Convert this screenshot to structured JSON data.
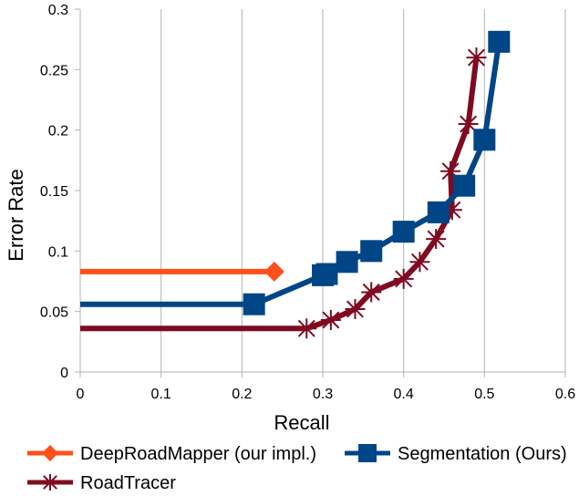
{
  "chart_data": {
    "type": "line",
    "title": "",
    "xlabel": "Recall",
    "ylabel": "Error Rate",
    "xlim": [
      0,
      0.6
    ],
    "ylim": [
      0,
      0.3
    ],
    "x_ticks": [
      0,
      0.1,
      0.2,
      0.3,
      0.4,
      0.5,
      0.6
    ],
    "x_tick_labels": [
      "0",
      "0.1",
      "0.2",
      "0.3",
      "0.4",
      "0.5",
      "0.6"
    ],
    "y_ticks": [
      0,
      0.05,
      0.1,
      0.15,
      0.2,
      0.25,
      0.3
    ],
    "y_tick_labels": [
      "0",
      "0.05",
      "0.1",
      "0.15",
      "0.2",
      "0.25",
      "0.3"
    ],
    "grid": "vertical",
    "legend_position": "bottom",
    "series": [
      {
        "name": "DeepRoadMapper (our impl.)",
        "color": "#ff4f1a",
        "marker": "diamond",
        "points": [
          [
            0,
            0.083
          ],
          [
            0.24,
            0.083
          ]
        ]
      },
      {
        "name": "RoadTracer",
        "color": "#7f0a21",
        "marker": "asterisk",
        "points": [
          [
            0,
            0.036
          ],
          [
            0.28,
            0.036
          ],
          [
            0.31,
            0.043
          ],
          [
            0.34,
            0.052
          ],
          [
            0.36,
            0.066
          ],
          [
            0.4,
            0.077
          ],
          [
            0.42,
            0.091
          ],
          [
            0.44,
            0.11
          ],
          [
            0.46,
            0.134
          ],
          [
            0.458,
            0.166
          ],
          [
            0.48,
            0.205
          ],
          [
            0.49,
            0.26
          ]
        ]
      },
      {
        "name": "Segmentation (Ours)",
        "color": "#004586",
        "marker": "square",
        "points": [
          [
            0,
            0.056
          ],
          [
            0.215,
            0.056
          ],
          [
            0.3,
            0.08
          ],
          [
            0.305,
            0.081
          ],
          [
            0.33,
            0.091
          ],
          [
            0.36,
            0.1
          ],
          [
            0.4,
            0.116
          ],
          [
            0.443,
            0.132
          ],
          [
            0.475,
            0.154
          ],
          [
            0.5,
            0.192
          ],
          [
            0.518,
            0.273
          ]
        ]
      }
    ]
  }
}
